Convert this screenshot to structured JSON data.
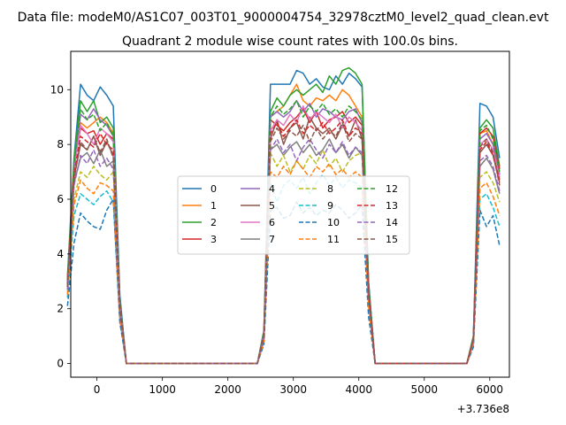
{
  "figure": {
    "suptitle": "Data file: modeM0/AS1C07_003T01_9000004754_32978cztM0_level2_quad_clean.evt",
    "title": "Quadrant 2 module wise count rates with 100.0s bins.",
    "x_offset_label": "+3.736e8"
  },
  "chart_data": {
    "type": "line",
    "x_offset": 373600000,
    "xlim": [
      -400,
      6300
    ],
    "ylim": [
      -0.5,
      11.4
    ],
    "xticks": [
      0,
      1000,
      2000,
      3000,
      4000,
      5000,
      6000
    ],
    "yticks": [
      0,
      2,
      4,
      6,
      8,
      10
    ],
    "grid": false,
    "legend": {
      "placement": "center",
      "columns": 4
    },
    "x": [
      -450,
      -350,
      -250,
      -150,
      -50,
      50,
      150,
      250,
      350,
      450,
      550,
      650,
      750,
      850,
      950,
      1050,
      1150,
      1250,
      1350,
      1450,
      1550,
      1650,
      1750,
      1850,
      1950,
      2050,
      2150,
      2250,
      2350,
      2450,
      2550,
      2650,
      2750,
      2850,
      2950,
      3050,
      3150,
      3250,
      3350,
      3450,
      3550,
      3650,
      3750,
      3850,
      3950,
      4050,
      4150,
      4250,
      4350,
      4450,
      4550,
      4650,
      4750,
      4850,
      4950,
      5050,
      5150,
      5250,
      5350,
      5450,
      5550,
      5650,
      5750,
      5850,
      5950,
      6050,
      6150
    ],
    "series": [
      {
        "name": "0",
        "color": "#1f77b4",
        "dash": "solid",
        "values": [
          3.2,
          7.5,
          10.2,
          9.8,
          9.6,
          10.1,
          9.8,
          9.4,
          2.5,
          0,
          0,
          0,
          0,
          0,
          0,
          0,
          0,
          0,
          0,
          0,
          0,
          0,
          0,
          0,
          0,
          0,
          0,
          0,
          0,
          0,
          1.2,
          10.2,
          10.2,
          10.2,
          10.2,
          10.7,
          10.6,
          10.2,
          10.4,
          10.1,
          10.0,
          10.5,
          10.2,
          10.6,
          10.4,
          10.1,
          3.0,
          0,
          0,
          0,
          0,
          0,
          0,
          0,
          0,
          0,
          0,
          0,
          0,
          0,
          0,
          0,
          1.0,
          9.5,
          9.4,
          9.0,
          7.5
        ]
      },
      {
        "name": "1",
        "color": "#ff7f0e",
        "dash": "solid",
        "values": [
          3.0,
          7.0,
          8.8,
          8.6,
          8.8,
          9.0,
          8.8,
          8.4,
          2.2,
          0,
          0,
          0,
          0,
          0,
          0,
          0,
          0,
          0,
          0,
          0,
          0,
          0,
          0,
          0,
          0,
          0,
          0,
          0,
          0,
          0,
          1.1,
          9.0,
          9.2,
          9.4,
          9.8,
          10.2,
          9.6,
          9.4,
          9.7,
          9.6,
          9.8,
          9.6,
          10.0,
          9.8,
          9.4,
          9.0,
          2.8,
          0,
          0,
          0,
          0,
          0,
          0,
          0,
          0,
          0,
          0,
          0,
          0,
          0,
          0,
          0,
          0.9,
          8.4,
          8.5,
          8.0,
          6.9
        ]
      },
      {
        "name": "2",
        "color": "#2ca02c",
        "dash": "solid",
        "values": [
          3.1,
          7.4,
          9.6,
          9.2,
          9.6,
          8.8,
          9.0,
          8.6,
          2.3,
          0,
          0,
          0,
          0,
          0,
          0,
          0,
          0,
          0,
          0,
          0,
          0,
          0,
          0,
          0,
          0,
          0,
          0,
          0,
          0,
          0,
          1.2,
          9.2,
          9.7,
          9.4,
          9.8,
          10.0,
          9.8,
          10.0,
          10.2,
          9.9,
          10.5,
          10.2,
          10.7,
          10.8,
          10.6,
          10.2,
          2.9,
          0,
          0,
          0,
          0,
          0,
          0,
          0,
          0,
          0,
          0,
          0,
          0,
          0,
          0,
          0,
          1.0,
          8.6,
          8.9,
          8.6,
          7.2
        ]
      },
      {
        "name": "3",
        "color": "#d62728",
        "dash": "solid",
        "values": [
          3.0,
          7.2,
          8.6,
          8.4,
          8.5,
          8.0,
          8.4,
          8.2,
          2.2,
          0,
          0,
          0,
          0,
          0,
          0,
          0,
          0,
          0,
          0,
          0,
          0,
          0,
          0,
          0,
          0,
          0,
          0,
          0,
          0,
          0,
          1.1,
          8.9,
          8.7,
          8.5,
          8.8,
          9.0,
          9.3,
          8.8,
          9.2,
          8.6,
          8.9,
          9.0,
          9.2,
          8.8,
          9.0,
          8.7,
          2.7,
          0,
          0,
          0,
          0,
          0,
          0,
          0,
          0,
          0,
          0,
          0,
          0,
          0,
          0,
          0,
          0.9,
          8.4,
          8.6,
          8.3,
          7.1
        ]
      },
      {
        "name": "4",
        "color": "#9467bd",
        "dash": "solid",
        "values": [
          2.9,
          7.1,
          9.1,
          8.9,
          9.3,
          8.9,
          8.7,
          8.3,
          2.2,
          0,
          0,
          0,
          0,
          0,
          0,
          0,
          0,
          0,
          0,
          0,
          0,
          0,
          0,
          0,
          0,
          0,
          0,
          0,
          0,
          0,
          1.1,
          9.0,
          9.2,
          9.0,
          9.2,
          9.6,
          9.2,
          9.5,
          9.0,
          9.3,
          9.2,
          9.0,
          8.9,
          9.2,
          9.3,
          8.8,
          2.8,
          0,
          0,
          0,
          0,
          0,
          0,
          0,
          0,
          0,
          0,
          0,
          0,
          0,
          0,
          0,
          0.9,
          8.2,
          8.4,
          8.0,
          6.9
        ]
      },
      {
        "name": "5",
        "color": "#8c564b",
        "dash": "solid",
        "values": [
          2.8,
          6.8,
          8.0,
          7.8,
          8.3,
          7.6,
          8.1,
          7.6,
          2.0,
          0,
          0,
          0,
          0,
          0,
          0,
          0,
          0,
          0,
          0,
          0,
          0,
          0,
          0,
          0,
          0,
          0,
          0,
          0,
          0,
          0,
          1.0,
          8.2,
          8.9,
          8.0,
          8.6,
          8.8,
          8.2,
          9.0,
          8.6,
          8.4,
          8.6,
          8.2,
          8.7,
          8.3,
          8.9,
          8.2,
          2.6,
          0,
          0,
          0,
          0,
          0,
          0,
          0,
          0,
          0,
          0,
          0,
          0,
          0,
          0,
          0,
          0.9,
          7.7,
          8.0,
          7.6,
          6.6
        ]
      },
      {
        "name": "6",
        "color": "#e377c2",
        "dash": "solid",
        "values": [
          2.9,
          7.0,
          8.7,
          8.4,
          8.0,
          8.6,
          8.4,
          8.1,
          2.1,
          0,
          0,
          0,
          0,
          0,
          0,
          0,
          0,
          0,
          0,
          0,
          0,
          0,
          0,
          0,
          0,
          0,
          0,
          0,
          0,
          0,
          1.0,
          8.5,
          8.9,
          8.7,
          9.1,
          8.8,
          9.4,
          8.9,
          9.2,
          9.0,
          8.8,
          9.1,
          8.6,
          9.0,
          8.8,
          8.5,
          2.7,
          0,
          0,
          0,
          0,
          0,
          0,
          0,
          0,
          0,
          0,
          0,
          0,
          0,
          0,
          0,
          0.9,
          8.0,
          8.2,
          7.8,
          6.8
        ]
      },
      {
        "name": "7",
        "color": "#7f7f7f",
        "dash": "solid",
        "values": [
          2.7,
          6.6,
          7.5,
          7.7,
          7.3,
          7.8,
          7.2,
          7.4,
          1.9,
          0,
          0,
          0,
          0,
          0,
          0,
          0,
          0,
          0,
          0,
          0,
          0,
          0,
          0,
          0,
          0,
          0,
          0,
          0,
          0,
          0,
          1.0,
          7.8,
          8.0,
          7.6,
          7.9,
          8.1,
          7.7,
          8.0,
          7.6,
          7.8,
          8.2,
          7.7,
          8.0,
          7.5,
          7.9,
          7.6,
          2.4,
          0,
          0,
          0,
          0,
          0,
          0,
          0,
          0,
          0,
          0,
          0,
          0,
          0,
          0,
          0,
          0.8,
          7.2,
          7.5,
          7.1,
          6.2
        ]
      },
      {
        "name": "8",
        "color": "#bcbd22",
        "dash": "dashed",
        "values": [
          2.6,
          6.0,
          7.0,
          6.8,
          7.2,
          6.9,
          6.7,
          7.0,
          1.8,
          0,
          0,
          0,
          0,
          0,
          0,
          0,
          0,
          0,
          0,
          0,
          0,
          0,
          0,
          0,
          0,
          0,
          0,
          0,
          0,
          0,
          0.9,
          7.7,
          7.2,
          7.6,
          7.0,
          7.4,
          7.1,
          7.6,
          7.3,
          7.8,
          7.2,
          7.5,
          7.0,
          7.4,
          7.6,
          7.7,
          2.3,
          0,
          0,
          0,
          0,
          0,
          0,
          0,
          0,
          0,
          0,
          0,
          0,
          0,
          0,
          0,
          0.8,
          6.8,
          7.0,
          6.6,
          5.9
        ]
      },
      {
        "name": "9",
        "color": "#17becf",
        "dash": "dashed",
        "values": [
          2.4,
          5.4,
          6.2,
          6.0,
          5.8,
          6.1,
          6.3,
          5.9,
          1.6,
          0,
          0,
          0,
          0,
          0,
          0,
          0,
          0,
          0,
          0,
          0,
          0,
          0,
          0,
          0,
          0,
          0,
          0,
          0,
          0,
          0,
          0.8,
          6.6,
          5.9,
          6.5,
          6.7,
          6.4,
          6.8,
          6.2,
          6.6,
          6.9,
          6.5,
          6.8,
          6.4,
          6.7,
          6.6,
          6.4,
          2.0,
          0,
          0,
          0,
          0,
          0,
          0,
          0,
          0,
          0,
          0,
          0,
          0,
          0,
          0,
          0,
          0.7,
          6.0,
          6.2,
          5.7,
          5.0
        ]
      },
      {
        "name": "10",
        "color": "#1f77b4",
        "dash": "dashed",
        "values": [
          2.1,
          4.4,
          5.5,
          5.2,
          5.0,
          4.9,
          5.6,
          6.0,
          1.5,
          0,
          0,
          0,
          0,
          0,
          0,
          0,
          0,
          0,
          0,
          0,
          0,
          0,
          0,
          0,
          0,
          0,
          0,
          0,
          0,
          0,
          0.7,
          5.6,
          5.7,
          5.3,
          5.4,
          5.9,
          5.5,
          5.7,
          5.4,
          5.6,
          5.5,
          5.8,
          5.6,
          5.3,
          5.5,
          5.8,
          1.7,
          0,
          0,
          0,
          0,
          0,
          0,
          0,
          0,
          0,
          0,
          0,
          0,
          0,
          0,
          0,
          0.6,
          5.6,
          5.0,
          5.4,
          4.3
        ]
      },
      {
        "name": "11",
        "color": "#ff7f0e",
        "dash": "dashed",
        "values": [
          2.5,
          5.8,
          6.7,
          6.4,
          6.2,
          6.6,
          6.5,
          6.3,
          1.7,
          0,
          0,
          0,
          0,
          0,
          0,
          0,
          0,
          0,
          0,
          0,
          0,
          0,
          0,
          0,
          0,
          0,
          0,
          0,
          0,
          0,
          0.8,
          7.0,
          6.8,
          7.2,
          6.9,
          7.4,
          7.1,
          6.8,
          7.2,
          7.0,
          7.3,
          6.9,
          7.1,
          6.8,
          7.0,
          6.8,
          2.1,
          0,
          0,
          0,
          0,
          0,
          0,
          0,
          0,
          0,
          0,
          0,
          0,
          0,
          0,
          0,
          0.7,
          6.4,
          6.6,
          6.1,
          5.4
        ]
      },
      {
        "name": "12",
        "color": "#2ca02c",
        "dash": "dashed",
        "values": [
          3.0,
          7.3,
          9.3,
          8.9,
          9.1,
          8.5,
          8.8,
          8.3,
          2.2,
          0,
          0,
          0,
          0,
          0,
          0,
          0,
          0,
          0,
          0,
          0,
          0,
          0,
          0,
          0,
          0,
          0,
          0,
          0,
          0,
          0,
          1.1,
          9.0,
          9.4,
          9.1,
          9.3,
          9.6,
          9.0,
          9.4,
          9.2,
          9.5,
          9.1,
          9.3,
          9.0,
          9.4,
          9.2,
          8.9,
          2.8,
          0,
          0,
          0,
          0,
          0,
          0,
          0,
          0,
          0,
          0,
          0,
          0,
          0,
          0,
          0,
          0.9,
          8.5,
          8.7,
          8.2,
          7.0
        ]
      },
      {
        "name": "13",
        "color": "#d62728",
        "dash": "dashed",
        "values": [
          2.9,
          6.9,
          8.3,
          8.1,
          7.9,
          8.4,
          8.0,
          7.8,
          2.1,
          0,
          0,
          0,
          0,
          0,
          0,
          0,
          0,
          0,
          0,
          0,
          0,
          0,
          0,
          0,
          0,
          0,
          0,
          0,
          0,
          0,
          1.0,
          8.4,
          8.8,
          8.3,
          8.6,
          8.9,
          8.4,
          8.7,
          8.5,
          8.8,
          8.4,
          8.6,
          8.9,
          8.3,
          8.6,
          8.4,
          2.6,
          0,
          0,
          0,
          0,
          0,
          0,
          0,
          0,
          0,
          0,
          0,
          0,
          0,
          0,
          0,
          0.9,
          7.8,
          8.1,
          7.6,
          6.7
        ]
      },
      {
        "name": "14",
        "color": "#9467bd",
        "dash": "dashed",
        "values": [
          2.7,
          6.5,
          7.6,
          7.3,
          7.8,
          7.2,
          7.5,
          7.1,
          1.9,
          0,
          0,
          0,
          0,
          0,
          0,
          0,
          0,
          0,
          0,
          0,
          0,
          0,
          0,
          0,
          0,
          0,
          0,
          0,
          0,
          0,
          0.9,
          7.8,
          8.2,
          7.7,
          8.0,
          7.4,
          7.9,
          8.2,
          7.8,
          7.5,
          8.0,
          7.7,
          8.1,
          7.6,
          7.9,
          7.7,
          2.4,
          0,
          0,
          0,
          0,
          0,
          0,
          0,
          0,
          0,
          0,
          0,
          0,
          0,
          0,
          0,
          0.8,
          7.4,
          7.6,
          7.2,
          6.3
        ]
      },
      {
        "name": "15",
        "color": "#8c564b",
        "dash": "dashed",
        "values": [
          2.8,
          6.7,
          8.1,
          7.8,
          8.3,
          7.7,
          8.2,
          7.5,
          2.0,
          0,
          0,
          0,
          0,
          0,
          0,
          0,
          0,
          0,
          0,
          0,
          0,
          0,
          0,
          0,
          0,
          0,
          0,
          0,
          0,
          0,
          1.0,
          8.1,
          8.6,
          8.2,
          8.5,
          8.3,
          8.7,
          8.1,
          8.6,
          8.2,
          8.5,
          8.3,
          8.8,
          8.1,
          8.4,
          8.2,
          2.5,
          0,
          0,
          0,
          0,
          0,
          0,
          0,
          0,
          0,
          0,
          0,
          0,
          0,
          0,
          0,
          0.9,
          7.9,
          8.2,
          7.7,
          6.5
        ]
      }
    ]
  }
}
